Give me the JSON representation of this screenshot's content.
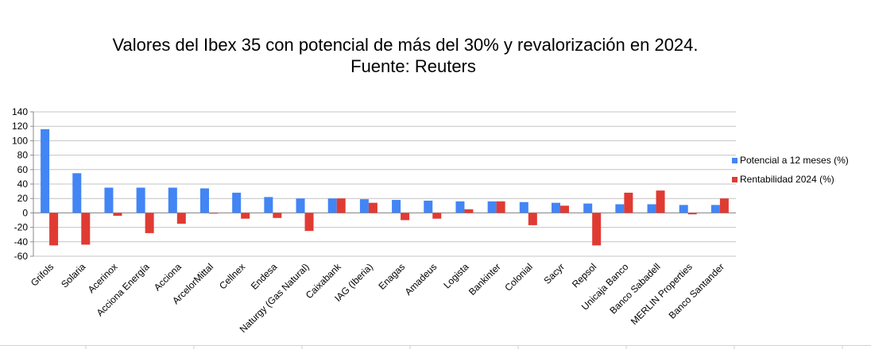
{
  "chart_data": {
    "type": "bar",
    "title": "Valores del Ibex 35 con potencial de más del 30% y revalorización en 2024.",
    "subtitle": "Fuente: Reuters",
    "xlabel": "",
    "ylabel": "",
    "ylim": [
      -60,
      140
    ],
    "yticks": [
      140,
      120,
      100,
      80,
      60,
      40,
      20,
      0,
      -20,
      -40,
      -60
    ],
    "grid": true,
    "legend_position": "right",
    "categories": [
      "Grifols",
      "Solaria",
      "Acerinox",
      "Acciona Energía",
      "Acciona",
      "ArcelorMittal",
      "Cellnex",
      "Endesa",
      "Naturgy (Gas Natural)",
      "Caixabank",
      "IAG (Iberia)",
      "Enagas",
      "Amadeus",
      "Logista",
      "Bankinter",
      "Colonial",
      "Sacyr",
      "Repsol",
      "Unicaja Banco",
      "Banco Sabadell",
      "MERLIN Properties",
      "Banco Santander"
    ],
    "series": [
      {
        "name": "Potencial a 12 meses (%)",
        "color": "#4285f4",
        "values": [
          116,
          55,
          35,
          35,
          35,
          34,
          28,
          22,
          20,
          20,
          19,
          18,
          17,
          16,
          16,
          15,
          14,
          13,
          12,
          12,
          11,
          11
        ]
      },
      {
        "name": "Rentabilidad 2024 (%)",
        "color": "#e03b33",
        "values": [
          -45,
          -44,
          -4,
          -28,
          -15,
          -1,
          -8,
          -7,
          -25,
          20,
          14,
          -10,
          -8,
          5,
          16,
          -17,
          10,
          -45,
          28,
          31,
          -2,
          20
        ]
      }
    ]
  }
}
